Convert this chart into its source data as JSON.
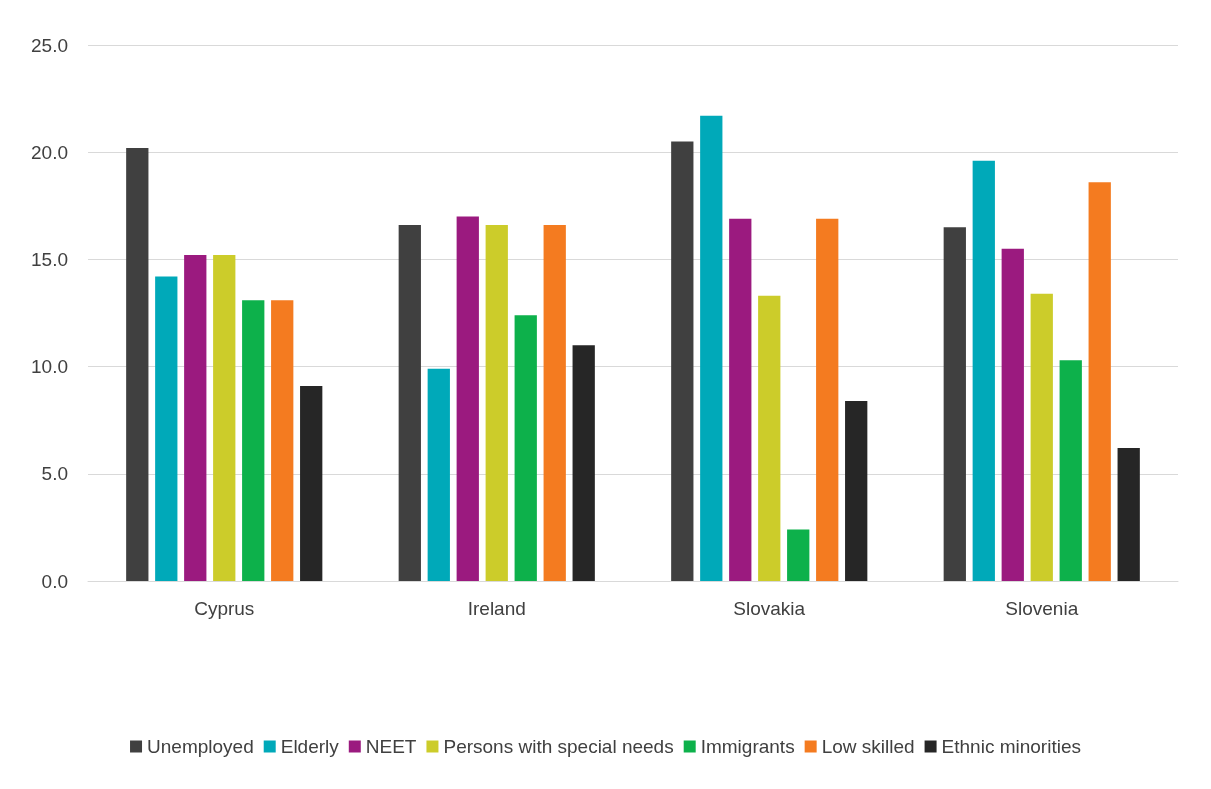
{
  "chart_data": {
    "type": "bar",
    "categories": [
      "Cyprus",
      "Ireland",
      "Slovakia",
      "Slovenia"
    ],
    "series": [
      {
        "name": "Unemployed",
        "color": "#404040",
        "values": [
          20.2,
          16.6,
          20.5,
          16.5
        ]
      },
      {
        "name": "Elderly",
        "color": "#00a9b9",
        "values": [
          14.2,
          9.9,
          21.7,
          19.6
        ]
      },
      {
        "name": "NEET",
        "color": "#9b1a7f",
        "values": [
          15.2,
          17.0,
          16.9,
          15.5
        ]
      },
      {
        "name": "Persons with special needs",
        "color": "#cccc2a",
        "values": [
          15.2,
          16.6,
          13.3,
          13.4
        ]
      },
      {
        "name": "Immigrants",
        "color": "#0db14b",
        "values": [
          13.1,
          12.4,
          2.4,
          10.3
        ]
      },
      {
        "name": "Low skilled",
        "color": "#f47b20",
        "values": [
          13.1,
          16.6,
          16.9,
          18.6
        ]
      },
      {
        "name": "Ethnic minorities",
        "color": "#262626",
        "values": [
          9.1,
          11.0,
          8.4,
          6.2
        ]
      }
    ],
    "ylim": [
      0,
      25
    ],
    "yticks": [
      {
        "value": 0,
        "label": "0.0"
      },
      {
        "value": 5,
        "label": "5.0"
      },
      {
        "value": 10,
        "label": "10.0"
      },
      {
        "value": 15,
        "label": "15.0"
      },
      {
        "value": 20,
        "label": "20.0"
      },
      {
        "value": 25,
        "label": "25.0"
      }
    ],
    "grid": "y",
    "legend": "bottom"
  }
}
